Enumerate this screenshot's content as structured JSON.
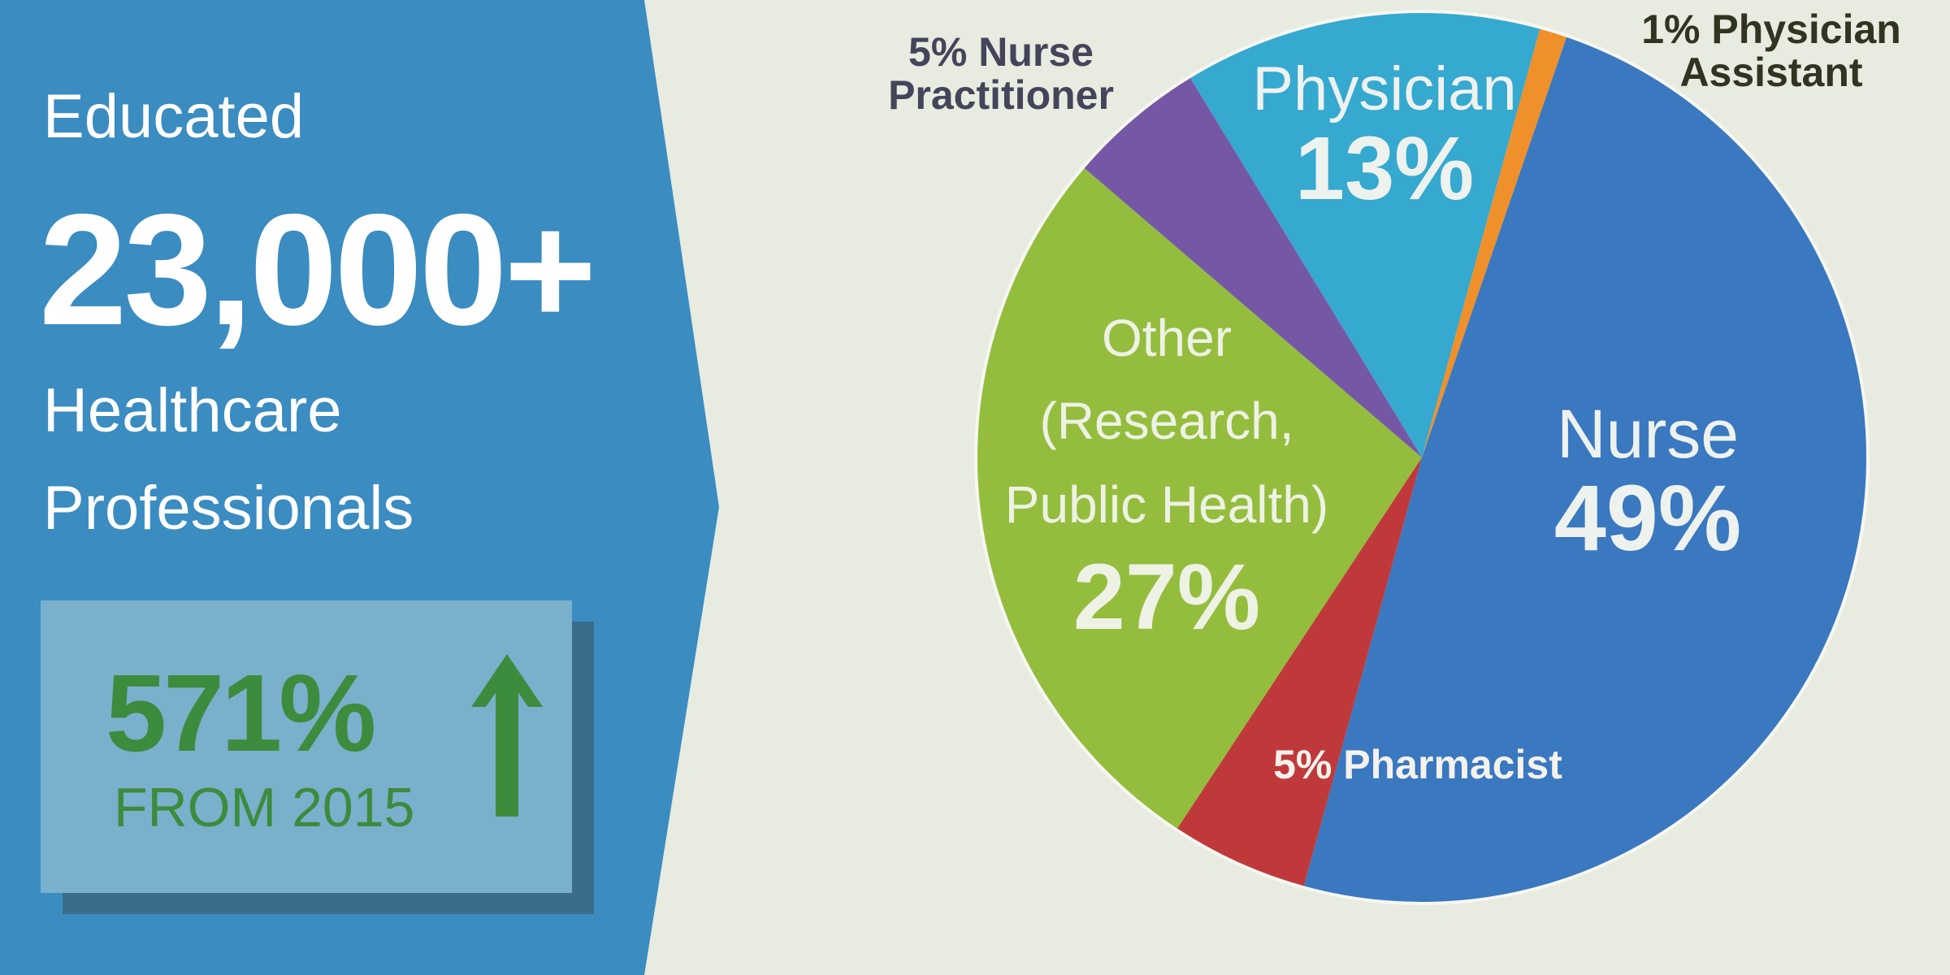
{
  "panel": {
    "line1": "Educated",
    "headline": "23,000+",
    "line2": "Healthcare",
    "line3": "Professionals",
    "growth": "571%",
    "growth_note": "FROM 2015"
  },
  "chart_data": {
    "type": "pie",
    "categories": [
      "Physician",
      "Physician Assistant",
      "Nurse",
      "Pharmacist",
      "Other (Research, Public Health)",
      "Nurse Practitioner"
    ],
    "values": [
      13,
      1,
      49,
      5,
      27,
      5
    ],
    "value_labels": [
      "13%",
      "1%",
      "49%",
      "5%",
      "27%",
      "5%"
    ],
    "colors": [
      "#35a9cf",
      "#f0902a",
      "#3a78c0",
      "#c0393a",
      "#94bd3e",
      "#7558a5"
    ]
  }
}
